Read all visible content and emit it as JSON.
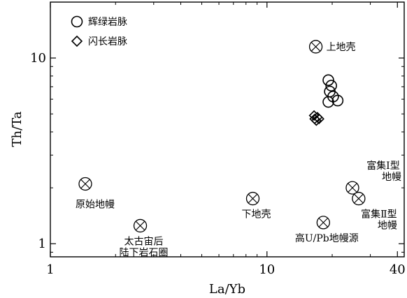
{
  "chart_data": {
    "type": "scatter",
    "xlabel": "La/Yb",
    "ylabel": "Th/Ta",
    "x_scale": "log",
    "y_scale": "log",
    "xlim": [
      1,
      43
    ],
    "ylim": [
      0.85,
      20
    ],
    "x_ticks": [
      {
        "value": 1,
        "label": "1"
      },
      {
        "value": 10,
        "label": "10"
      },
      {
        "value": 40,
        "label": "40"
      }
    ],
    "y_ticks": [
      {
        "value": 1,
        "label": "1"
      },
      {
        "value": 10,
        "label": "10"
      }
    ],
    "legend": {
      "position": "top-left",
      "entries": [
        {
          "marker": "circle",
          "label": "辉绿岩脉"
        },
        {
          "marker": "diamond",
          "label": "闪长岩脉"
        }
      ]
    },
    "series": [
      {
        "name": "辉绿岩脉",
        "marker": "circle",
        "points": [
          {
            "x": 19.2,
            "y": 7.6
          },
          {
            "x": 19.8,
            "y": 7.1
          },
          {
            "x": 19.5,
            "y": 6.6
          },
          {
            "x": 20.2,
            "y": 6.2
          },
          {
            "x": 21.2,
            "y": 5.9
          },
          {
            "x": 19.2,
            "y": 5.8
          }
        ]
      },
      {
        "name": "闪长岩脉",
        "marker": "diamond",
        "points": [
          {
            "x": 16.5,
            "y": 4.9
          },
          {
            "x": 17.1,
            "y": 4.8
          },
          {
            "x": 16.6,
            "y": 4.7
          },
          {
            "x": 17.4,
            "y": 4.7
          },
          {
            "x": 16.9,
            "y": 4.6
          }
        ]
      }
    ],
    "reference_points": [
      {
        "label": [
          "上地壳"
        ],
        "x": 16.8,
        "y": 11.5,
        "label_anchor": "right"
      },
      {
        "label": [
          "原始地幔"
        ],
        "x": 1.45,
        "y": 2.1,
        "label_anchor": "below-left"
      },
      {
        "label": [
          "太古宙后",
          "陆下岩石圈"
        ],
        "x": 2.6,
        "y": 1.25,
        "label_anchor": "below"
      },
      {
        "label": [
          "下地壳"
        ],
        "x": 8.6,
        "y": 1.75,
        "label_anchor": "below"
      },
      {
        "label": [
          "高U/Pb地幔源"
        ],
        "x": 18.2,
        "y": 1.3,
        "label_anchor": "below"
      },
      {
        "label": [
          "富集Ⅰ型",
          "地幔"
        ],
        "x": 24.8,
        "y": 2.0,
        "label_anchor": "above-right"
      },
      {
        "label": [
          "富集Ⅱ型",
          "地幔"
        ],
        "x": 26.5,
        "y": 1.75,
        "label_anchor": "below-right"
      }
    ]
  }
}
